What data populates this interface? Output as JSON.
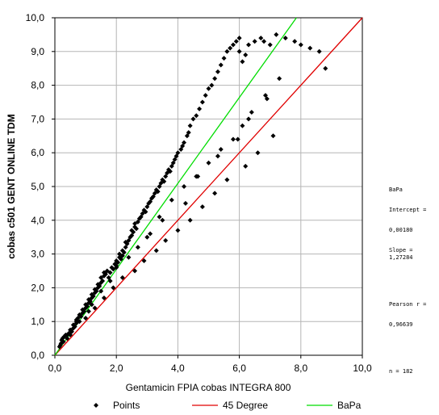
{
  "chart_data": {
    "type": "scatter",
    "title": "",
    "xlabel": "Gentamicin FPIA cobas INTEGRA 800",
    "ylabel": "cobas c501 GENT ONLINE TDM",
    "xlim": [
      0,
      10
    ],
    "ylim": [
      0,
      10
    ],
    "xticks": [
      "0,0",
      "2,0",
      "4,0",
      "6,0",
      "8,0",
      "10,0"
    ],
    "yticks": [
      "0,0",
      "1,0",
      "2,0",
      "3,0",
      "4,0",
      "5,0",
      "6,0",
      "7,0",
      "8,0",
      "9,0",
      "10,0"
    ],
    "grid": true,
    "legend_position": "bottom",
    "colors": {
      "points": "#000000",
      "identity": "#e00000",
      "regression": "#00dd00"
    },
    "series": [
      {
        "name": "Points",
        "kind": "scatter",
        "x": [
          0.15,
          0.18,
          0.2,
          0.22,
          0.25,
          0.28,
          0.3,
          0.35,
          0.4,
          0.45,
          0.5,
          0.5,
          0.55,
          0.6,
          0.6,
          0.65,
          0.7,
          0.7,
          0.75,
          0.8,
          0.8,
          0.85,
          0.9,
          0.9,
          0.95,
          1.0,
          1.0,
          1.05,
          1.1,
          1.1,
          1.15,
          1.2,
          1.2,
          1.25,
          1.3,
          1.3,
          1.35,
          1.4,
          1.4,
          1.45,
          1.5,
          1.5,
          1.55,
          1.6,
          1.6,
          1.65,
          1.7,
          1.75,
          1.8,
          1.85,
          1.9,
          1.95,
          2.0,
          2.0,
          2.05,
          2.1,
          2.1,
          2.15,
          2.2,
          2.2,
          2.25,
          2.3,
          2.3,
          2.35,
          2.4,
          2.45,
          2.5,
          2.5,
          2.55,
          2.6,
          2.6,
          2.65,
          2.7,
          2.75,
          2.8,
          2.85,
          2.9,
          2.95,
          3.0,
          3.05,
          3.1,
          3.15,
          3.2,
          3.25,
          3.3,
          3.35,
          3.4,
          3.45,
          3.5,
          3.55,
          3.6,
          3.65,
          3.7,
          3.75,
          3.8,
          3.85,
          3.9,
          3.95,
          4.0,
          4.1,
          4.15,
          4.2,
          4.3,
          4.35,
          4.4,
          4.5,
          4.6,
          4.7,
          4.8,
          4.9,
          5.0,
          5.1,
          5.2,
          5.3,
          5.4,
          5.5,
          5.6,
          5.7,
          5.8,
          5.9,
          6.0,
          6.0,
          6.1,
          6.2,
          6.3,
          6.5,
          6.7,
          6.8,
          7.0,
          7.2,
          7.5,
          7.8,
          8.0,
          8.3,
          8.6,
          8.8,
          1.0,
          1.3,
          1.6,
          1.9,
          2.2,
          2.6,
          2.9,
          3.3,
          3.6,
          4.0,
          4.4,
          4.8,
          5.2,
          5.6,
          6.2,
          6.6,
          7.1,
          1.2,
          1.8,
          2.4,
          3.0,
          3.4,
          3.8,
          4.2,
          4.6,
          5.0,
          5.4,
          5.8,
          6.1,
          6.4,
          6.9,
          7.3,
          0.4,
          0.7,
          1.1,
          1.5,
          2.0,
          2.7,
          3.1,
          3.5,
          4.25,
          4.65,
          5.3,
          5.95,
          6.3,
          6.85
        ],
        "y": [
          0.25,
          0.3,
          0.35,
          0.45,
          0.5,
          0.4,
          0.55,
          0.6,
          0.5,
          0.65,
          0.6,
          0.75,
          0.7,
          0.8,
          0.9,
          0.85,
          0.95,
          1.05,
          1.1,
          1.0,
          1.2,
          1.15,
          1.25,
          1.35,
          1.3,
          1.4,
          1.5,
          1.45,
          1.55,
          1.65,
          1.6,
          1.7,
          1.8,
          1.75,
          1.85,
          1.95,
          1.9,
          2.0,
          2.1,
          2.05,
          2.15,
          2.3,
          2.2,
          2.35,
          2.45,
          2.4,
          2.5,
          2.3,
          2.45,
          2.6,
          2.55,
          2.7,
          2.65,
          2.8,
          2.75,
          2.9,
          3.0,
          2.85,
          2.95,
          3.1,
          3.05,
          3.2,
          3.35,
          3.3,
          3.4,
          3.5,
          3.55,
          3.7,
          3.65,
          3.8,
          3.9,
          3.75,
          3.95,
          4.05,
          4.1,
          4.2,
          4.3,
          4.25,
          4.4,
          4.5,
          4.55,
          4.65,
          4.7,
          4.8,
          4.9,
          4.85,
          5.0,
          5.1,
          5.2,
          5.15,
          5.3,
          5.4,
          5.5,
          5.45,
          5.6,
          5.7,
          5.8,
          5.9,
          6.0,
          6.1,
          6.2,
          6.3,
          6.5,
          6.6,
          6.8,
          7.0,
          7.1,
          7.3,
          7.5,
          7.7,
          7.9,
          8.0,
          8.2,
          8.4,
          8.6,
          8.8,
          9.0,
          9.1,
          9.2,
          9.3,
          9.4,
          9.0,
          8.7,
          8.9,
          9.2,
          9.3,
          9.4,
          9.3,
          9.2,
          9.5,
          9.4,
          9.3,
          9.2,
          9.1,
          9.0,
          8.5,
          1.1,
          1.4,
          1.7,
          2.0,
          2.3,
          2.5,
          2.8,
          3.1,
          3.4,
          3.7,
          4.0,
          4.4,
          4.8,
          5.2,
          5.6,
          6.0,
          6.5,
          1.5,
          2.2,
          2.9,
          3.5,
          4.1,
          4.6,
          5.0,
          5.3,
          5.7,
          6.1,
          6.4,
          6.8,
          7.2,
          7.6,
          8.2,
          0.6,
          1.0,
          1.3,
          1.9,
          2.6,
          3.2,
          3.6,
          4.0,
          4.5,
          5.3,
          5.9,
          6.4,
          7.0,
          7.7
        ]
      },
      {
        "name": "45 Degree",
        "kind": "line",
        "x": [
          0,
          10
        ],
        "y": [
          0,
          10
        ]
      },
      {
        "name": "BaPa",
        "kind": "line",
        "x": [
          0,
          7.856
        ],
        "y": [
          0.0018,
          10
        ]
      }
    ],
    "stats": {
      "title": "BaPa",
      "intercept_label": "Intercept =",
      "intercept_value": "0,00180",
      "slope": "Slope = 1,27284",
      "pearson_label": "Pearson r =",
      "pearson_value": "0,96639",
      "n": "n = 182"
    }
  }
}
